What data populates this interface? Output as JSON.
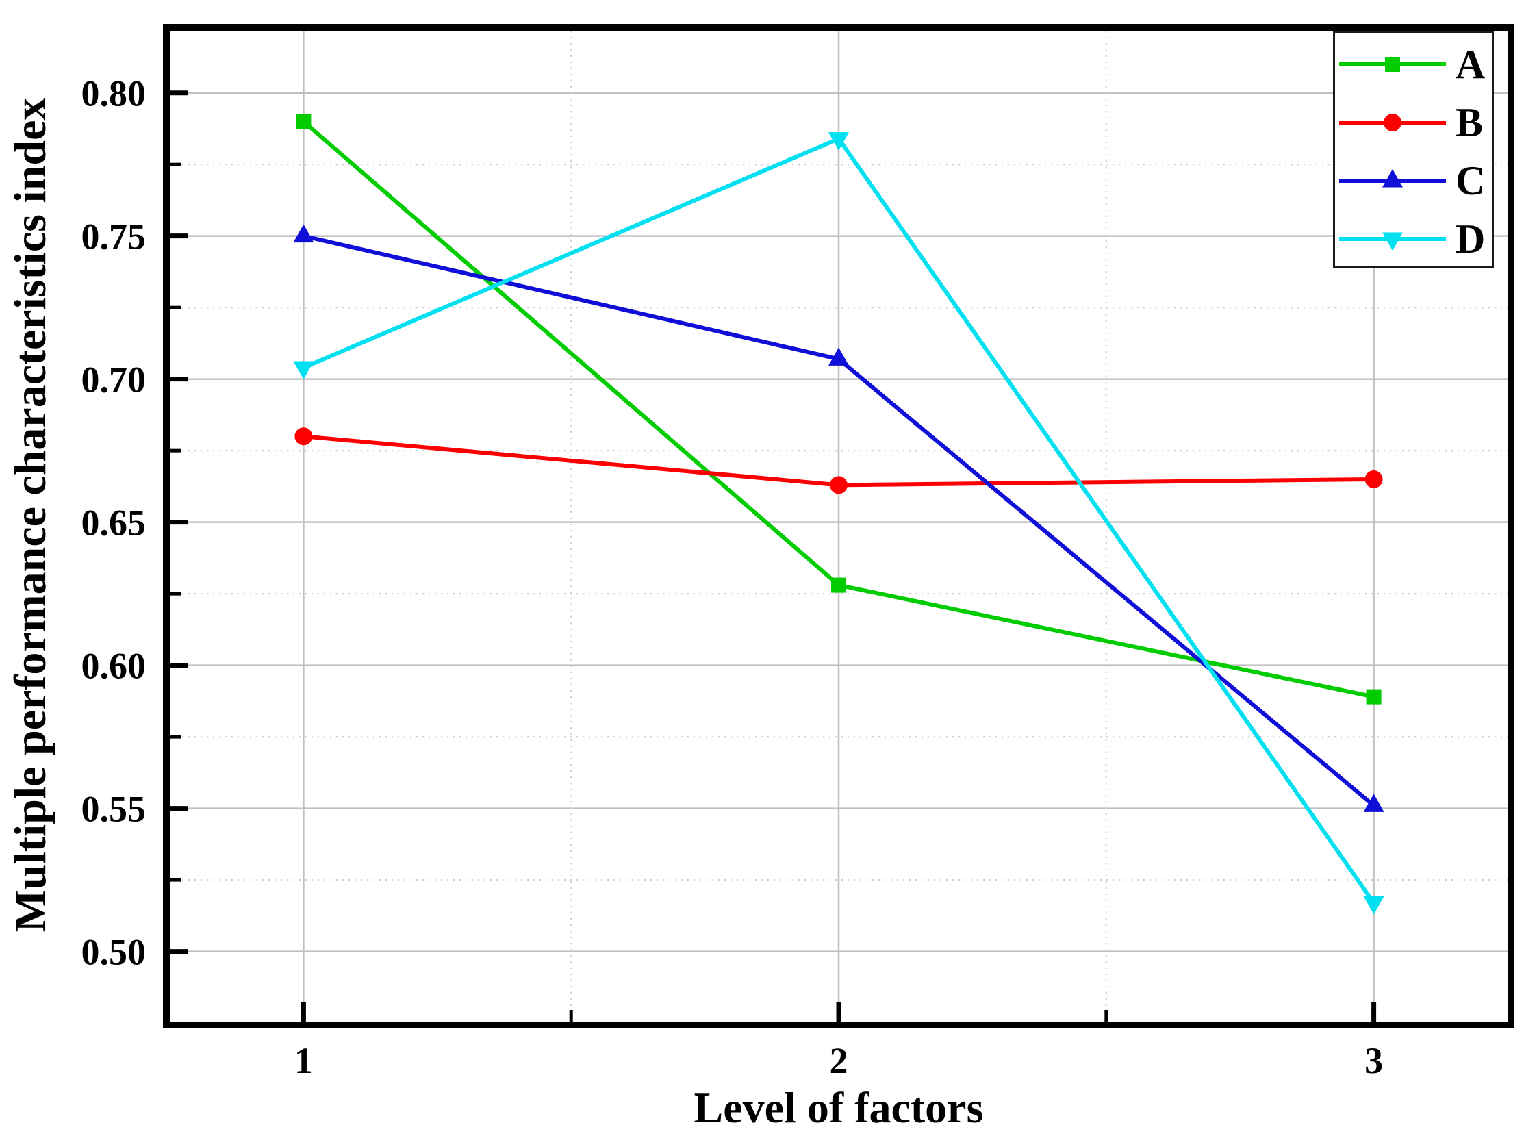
{
  "figure": {
    "background": "#ffffff",
    "text_color": "#000000",
    "frame_color": "#000000",
    "grid_major_color": "#c0c0c0",
    "grid_minor_color": "#cfcfcf"
  },
  "chart_data": {
    "type": "line",
    "title": "",
    "xlabel": "Level of factors",
    "ylabel": "Multiple performance characteristics index",
    "x": [
      1,
      2,
      3
    ],
    "series": [
      {
        "name": "A",
        "color": "#00cc00",
        "marker": "square",
        "values": [
          0.79,
          0.628,
          0.589
        ]
      },
      {
        "name": "B",
        "color": "#fb0000",
        "marker": "circle",
        "values": [
          0.68,
          0.663,
          0.665
        ]
      },
      {
        "name": "C",
        "color": "#0f0fd8",
        "marker": "triangle-up",
        "values": [
          0.75,
          0.707,
          0.551
        ]
      },
      {
        "name": "D",
        "color": "#00e0f0",
        "marker": "triangle-down",
        "values": [
          0.704,
          0.784,
          0.517
        ]
      }
    ],
    "x_ticks": [
      1,
      2,
      3
    ],
    "x_tick_labels": [
      "1",
      "2",
      "3"
    ],
    "x_minor_ticks": [
      1.5,
      2.5
    ],
    "xlim": [
      0.75,
      3.25
    ],
    "y_ticks": [
      0.5,
      0.55,
      0.6,
      0.65,
      0.7,
      0.75,
      0.8
    ],
    "y_tick_labels": [
      "0.50",
      "0.55",
      "0.60",
      "0.65",
      "0.70",
      "0.75",
      "0.80"
    ],
    "y_minor_ticks": [
      0.525,
      0.575,
      0.625,
      0.675,
      0.725,
      0.775
    ],
    "ylim": [
      0.4755,
      0.8217
    ],
    "grid": {
      "major_solid": true,
      "minor_dotted": true
    },
    "legend_position": "top-right"
  }
}
